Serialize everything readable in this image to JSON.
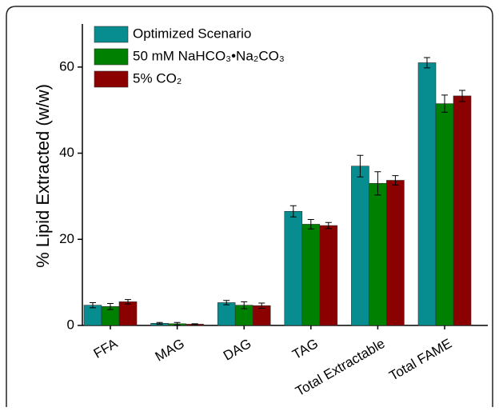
{
  "chart_data": {
    "type": "bar",
    "y_label": "% Lipid Extracted (w/w)",
    "categories": [
      "FFA",
      "MAG",
      "DAG",
      "TAG",
      "Total Extractable",
      "Total FAME"
    ],
    "series": [
      {
        "name": "Optimized Scenario",
        "color": "#078c8f",
        "values": [
          4.7,
          0.5,
          5.3,
          26.5,
          37,
          61
        ],
        "errors": [
          0.6,
          0.2,
          0.5,
          1.3,
          2.5,
          1.2
        ]
      },
      {
        "name": "50 mM NaHCO₃•Na₂CO₃",
        "color": "#008000",
        "values": [
          4.4,
          0.4,
          4.7,
          23.5,
          33,
          51.5
        ],
        "errors": [
          0.7,
          0.3,
          0.8,
          1.1,
          2.7,
          2.0
        ]
      },
      {
        "name": "5% CO₂",
        "color": "#8b0000",
        "values": [
          5.5,
          0.3,
          4.6,
          23.2,
          33.7,
          53.3
        ],
        "errors": [
          0.5,
          0.1,
          0.6,
          0.7,
          1.1,
          1.3
        ]
      }
    ],
    "ylim": [
      0,
      70
    ],
    "yticks": [
      0,
      20,
      40,
      60
    ],
    "grid": false,
    "legend": "top-left"
  }
}
